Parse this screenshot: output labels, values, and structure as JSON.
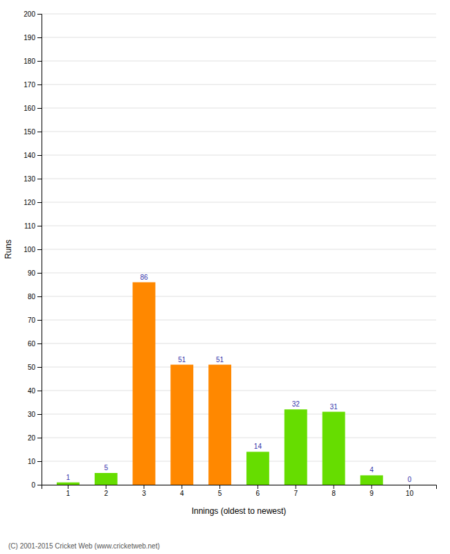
{
  "chart_data": {
    "type": "bar",
    "categories": [
      "1",
      "2",
      "3",
      "4",
      "5",
      "6",
      "7",
      "8",
      "9",
      "10"
    ],
    "values": [
      1,
      5,
      86,
      51,
      51,
      14,
      32,
      31,
      4,
      0
    ],
    "colors": [
      "#66dd00",
      "#66dd00",
      "#ff8800",
      "#ff8800",
      "#ff8800",
      "#66dd00",
      "#66dd00",
      "#66dd00",
      "#66dd00",
      "#66dd00"
    ],
    "xlabel": "Innings (oldest to newest)",
    "ylabel": "Runs",
    "ylim": [
      0,
      200
    ],
    "yticks": [
      0,
      10,
      20,
      30,
      40,
      50,
      60,
      70,
      80,
      90,
      100,
      110,
      120,
      130,
      140,
      150,
      160,
      170,
      180,
      190,
      200
    ],
    "grid": true,
    "data_labels": true,
    "annotations": [
      "(C) 2001-2015 Cricket Web (www.cricketweb.net)"
    ]
  }
}
